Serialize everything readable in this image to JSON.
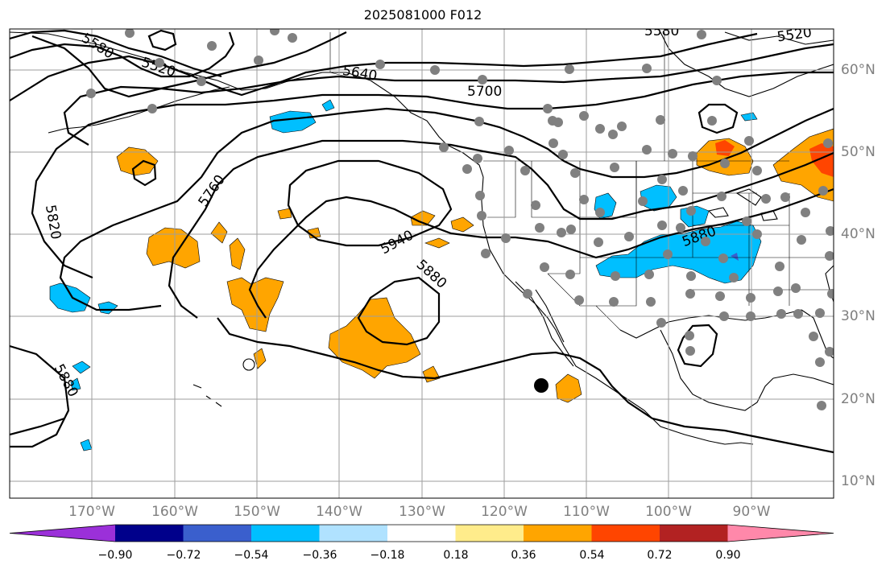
{
  "title": "2025081000 F012",
  "lat_labels": [
    "60°N",
    "50°N",
    "40°N",
    "30°N",
    "20°N",
    "10°N"
  ],
  "lon_labels": [
    "170°W",
    "160°W",
    "150°W",
    "140°W",
    "130°W",
    "120°W",
    "110°W",
    "100°W",
    "90°W"
  ],
  "contour_labels": [
    "5580",
    "5520",
    "5640",
    "5700",
    "5760",
    "5820",
    "5940",
    "5880",
    "5880",
    "5880",
    "5580",
    "5520"
  ],
  "colorbar": {
    "ticks": [
      "−0.90",
      "−0.72",
      "−0.54",
      "−0.36",
      "−0.18",
      "0.18",
      "0.36",
      "0.54",
      "0.72",
      "0.90"
    ],
    "colors": [
      "#9b30d9",
      "#00008b",
      "#3a5fcd",
      "#00bfff",
      "#b0e2ff",
      "#ffffff",
      "#ffec8b",
      "#ffa500",
      "#ff4500",
      "#b22222",
      "#ff88aa"
    ]
  },
  "colors": {
    "grid": "#9e9e9e",
    "stations": "#808080",
    "positive": "#ffa500",
    "negative": "#00bfff"
  },
  "map_marker": "black-dot"
}
